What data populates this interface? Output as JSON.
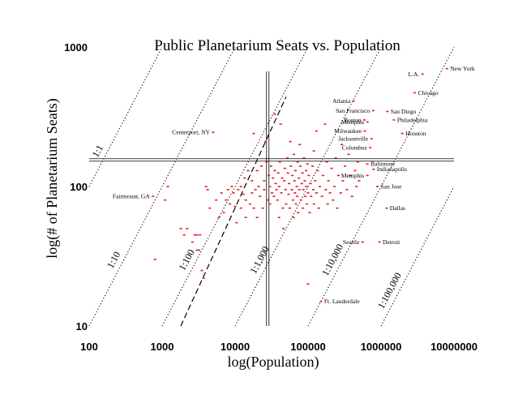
{
  "chart_data": {
    "type": "scatter",
    "title": "Public Planetarium Seats vs. Population",
    "xlabel": "log(Population)",
    "ylabel": "log(# of Planetarium Seats)",
    "x_scale": "log",
    "y_scale": "log",
    "xlim": [
      100,
      10000000
    ],
    "ylim": [
      10,
      1000
    ],
    "x_ticks": [
      "100",
      "1000",
      "10000",
      "100000",
      "1000000",
      "10000000"
    ],
    "y_ticks": [
      "10",
      "100",
      "1000"
    ],
    "grid": false,
    "point_color": "#e8141a",
    "reference_lines": {
      "vertical_x": 28000,
      "horizontal_y": 155
    },
    "ratio_lines": [
      {
        "label": "1:1",
        "ratio": 1
      },
      {
        "label": "1:10",
        "ratio": 10
      },
      {
        "label": "1:100",
        "ratio": 100
      },
      {
        "label": "1:1,000",
        "ratio": 1000
      },
      {
        "label": "1:10,000",
        "ratio": 10000
      },
      {
        "label": "1:100,000",
        "ratio": 100000
      }
    ],
    "dashed_fit_line": {
      "from": [
        1800,
        10
      ],
      "to": [
        50000,
        440
      ]
    },
    "labeled_points": [
      {
        "name": "New York",
        "x": 8000000,
        "y": 700
      },
      {
        "name": "L.A.",
        "x": 3700000,
        "y": 640
      },
      {
        "name": "Chicago",
        "x": 2900000,
        "y": 470
      },
      {
        "name": "Atlanta",
        "x": 420000,
        "y": 410
      },
      {
        "name": "San Francisco",
        "x": 780000,
        "y": 350
      },
      {
        "name": "San Diego",
        "x": 1220000,
        "y": 345
      },
      {
        "name": "Philadelphia",
        "x": 1500000,
        "y": 300
      },
      {
        "name": "Boston",
        "x": 590000,
        "y": 300
      },
      {
        "name": "Memphis",
        "x": 650000,
        "y": 290
      },
      {
        "name": "Milwaukee",
        "x": 600000,
        "y": 250
      },
      {
        "name": "Houston",
        "x": 1950000,
        "y": 240
      },
      {
        "name": "Jacksonville",
        "x": 740000,
        "y": 220
      },
      {
        "name": "Centerport, NY",
        "x": 5000,
        "y": 245
      },
      {
        "name": "Columbus",
        "x": 710000,
        "y": 190
      },
      {
        "name": "Baltimore",
        "x": 650000,
        "y": 145
      },
      {
        "name": "Indianapolis",
        "x": 790000,
        "y": 133
      },
      {
        "name": "Memphis",
        "x": 650000,
        "y": 120
      },
      {
        "name": "San Jose",
        "x": 890000,
        "y": 100
      },
      {
        "name": "Fairmount, GA",
        "x": 750,
        "y": 85
      },
      {
        "name": "Dallas",
        "x": 1190000,
        "y": 70
      },
      {
        "name": "Seattle",
        "x": 560000,
        "y": 40
      },
      {
        "name": "Detroit",
        "x": 950000,
        "y": 40
      },
      {
        "name": "Ft. Lauderdale",
        "x": 150000,
        "y": 15
      }
    ],
    "points": [
      [
        750,
        85
      ],
      [
        800,
        30
      ],
      [
        1100,
        80
      ],
      [
        1200,
        100
      ],
      [
        1800,
        50
      ],
      [
        2000,
        45
      ],
      [
        2200,
        50
      ],
      [
        2600,
        40
      ],
      [
        2800,
        45
      ],
      [
        3000,
        45
      ],
      [
        3000,
        35
      ],
      [
        3200,
        35
      ],
      [
        3300,
        45
      ],
      [
        3500,
        25
      ],
      [
        3700,
        22
      ],
      [
        4000,
        100
      ],
      [
        4200,
        95
      ],
      [
        4500,
        70
      ],
      [
        5000,
        245
      ],
      [
        5500,
        80
      ],
      [
        6000,
        60
      ],
      [
        6500,
        90
      ],
      [
        7000,
        65
      ],
      [
        7500,
        80
      ],
      [
        8000,
        95
      ],
      [
        8500,
        75
      ],
      [
        9000,
        100
      ],
      [
        9500,
        90
      ],
      [
        10000,
        72
      ],
      [
        10500,
        55
      ],
      [
        11000,
        95
      ],
      [
        12000,
        100
      ],
      [
        12000,
        70
      ],
      [
        13000,
        88
      ],
      [
        13500,
        115
      ],
      [
        14000,
        80
      ],
      [
        14000,
        60
      ],
      [
        15000,
        130
      ],
      [
        16000,
        75
      ],
      [
        17000,
        110
      ],
      [
        17000,
        90
      ],
      [
        18000,
        70
      ],
      [
        18000,
        240
      ],
      [
        19000,
        95
      ],
      [
        20000,
        130
      ],
      [
        20000,
        60
      ],
      [
        21000,
        100
      ],
      [
        22000,
        85
      ],
      [
        23000,
        140
      ],
      [
        24000,
        70
      ],
      [
        25000,
        110
      ],
      [
        25000,
        95
      ],
      [
        26000,
        210
      ],
      [
        27000,
        150
      ],
      [
        28000,
        80
      ],
      [
        29000,
        120
      ],
      [
        30000,
        100
      ],
      [
        30000,
        75
      ],
      [
        31000,
        140
      ],
      [
        32000,
        90
      ],
      [
        33000,
        115
      ],
      [
        34000,
        85
      ],
      [
        35000,
        330
      ],
      [
        35000,
        130
      ],
      [
        36000,
        105
      ],
      [
        37000,
        95
      ],
      [
        38000,
        80
      ],
      [
        39000,
        125
      ],
      [
        40000,
        60
      ],
      [
        40000,
        100
      ],
      [
        41000,
        150
      ],
      [
        42000,
        280
      ],
      [
        43000,
        90
      ],
      [
        44000,
        115
      ],
      [
        45000,
        70
      ],
      [
        46000,
        50
      ],
      [
        47000,
        110
      ],
      [
        48000,
        135
      ],
      [
        49000,
        95
      ],
      [
        50000,
        75
      ],
      [
        52000,
        160
      ],
      [
        53000,
        125
      ],
      [
        54000,
        88
      ],
      [
        55000,
        105
      ],
      [
        56000,
        70
      ],
      [
        57000,
        210
      ],
      [
        58000,
        140
      ],
      [
        60000,
        95
      ],
      [
        61000,
        120
      ],
      [
        62000,
        80
      ],
      [
        63000,
        60
      ],
      [
        64000,
        170
      ],
      [
        65000,
        110
      ],
      [
        66000,
        90
      ],
      [
        67000,
        130
      ],
      [
        68000,
        75
      ],
      [
        70000,
        100
      ],
      [
        71000,
        85
      ],
      [
        72000,
        150
      ],
      [
        73000,
        65
      ],
      [
        75000,
        115
      ],
      [
        76000,
        95
      ],
      [
        77000,
        200
      ],
      [
        78000,
        140
      ],
      [
        80000,
        80
      ],
      [
        82000,
        105
      ],
      [
        84000,
        125
      ],
      [
        85000,
        70
      ],
      [
        86000,
        95
      ],
      [
        88000,
        160
      ],
      [
        90000,
        110
      ],
      [
        92000,
        85
      ],
      [
        94000,
        130
      ],
      [
        95000,
        100
      ],
      [
        96000,
        75
      ],
      [
        98000,
        145
      ],
      [
        100000,
        90
      ],
      [
        100000,
        20
      ],
      [
        102000,
        120
      ],
      [
        105000,
        65
      ],
      [
        108000,
        105
      ],
      [
        110000,
        85
      ],
      [
        115000,
        140
      ],
      [
        118000,
        95
      ],
      [
        120000,
        180
      ],
      [
        120000,
        75
      ],
      [
        125000,
        110
      ],
      [
        130000,
        250
      ],
      [
        130000,
        90
      ],
      [
        135000,
        130
      ],
      [
        140000,
        70
      ],
      [
        145000,
        100
      ],
      [
        150000,
        15
      ],
      [
        155000,
        85
      ],
      [
        160000,
        120
      ],
      [
        170000,
        280
      ],
      [
        175000,
        95
      ],
      [
        180000,
        150
      ],
      [
        185000,
        75
      ],
      [
        190000,
        110
      ],
      [
        200000,
        90
      ],
      [
        210000,
        135
      ],
      [
        220000,
        80
      ],
      [
        230000,
        100
      ],
      [
        240000,
        160
      ],
      [
        250000,
        70
      ],
      [
        260000,
        120
      ],
      [
        280000,
        90
      ],
      [
        290000,
        200
      ],
      [
        300000,
        110
      ],
      [
        320000,
        140
      ],
      [
        340000,
        95
      ],
      [
        360000,
        170
      ],
      [
        380000,
        120
      ],
      [
        400000,
        85
      ],
      [
        420000,
        410
      ],
      [
        440000,
        130
      ],
      [
        460000,
        100
      ],
      [
        480000,
        150
      ],
      [
        500000,
        110
      ],
      [
        560000,
        40
      ],
      [
        590000,
        300
      ],
      [
        600000,
        250
      ],
      [
        650000,
        290
      ],
      [
        650000,
        145
      ],
      [
        650000,
        120
      ],
      [
        710000,
        190
      ],
      [
        740000,
        220
      ],
      [
        780000,
        350
      ],
      [
        790000,
        133
      ],
      [
        890000,
        100
      ],
      [
        950000,
        40
      ],
      [
        1190000,
        70
      ],
      [
        1220000,
        345
      ],
      [
        1500000,
        300
      ],
      [
        1950000,
        240
      ],
      [
        2900000,
        470
      ],
      [
        3700000,
        640
      ],
      [
        8000000,
        700
      ]
    ]
  }
}
